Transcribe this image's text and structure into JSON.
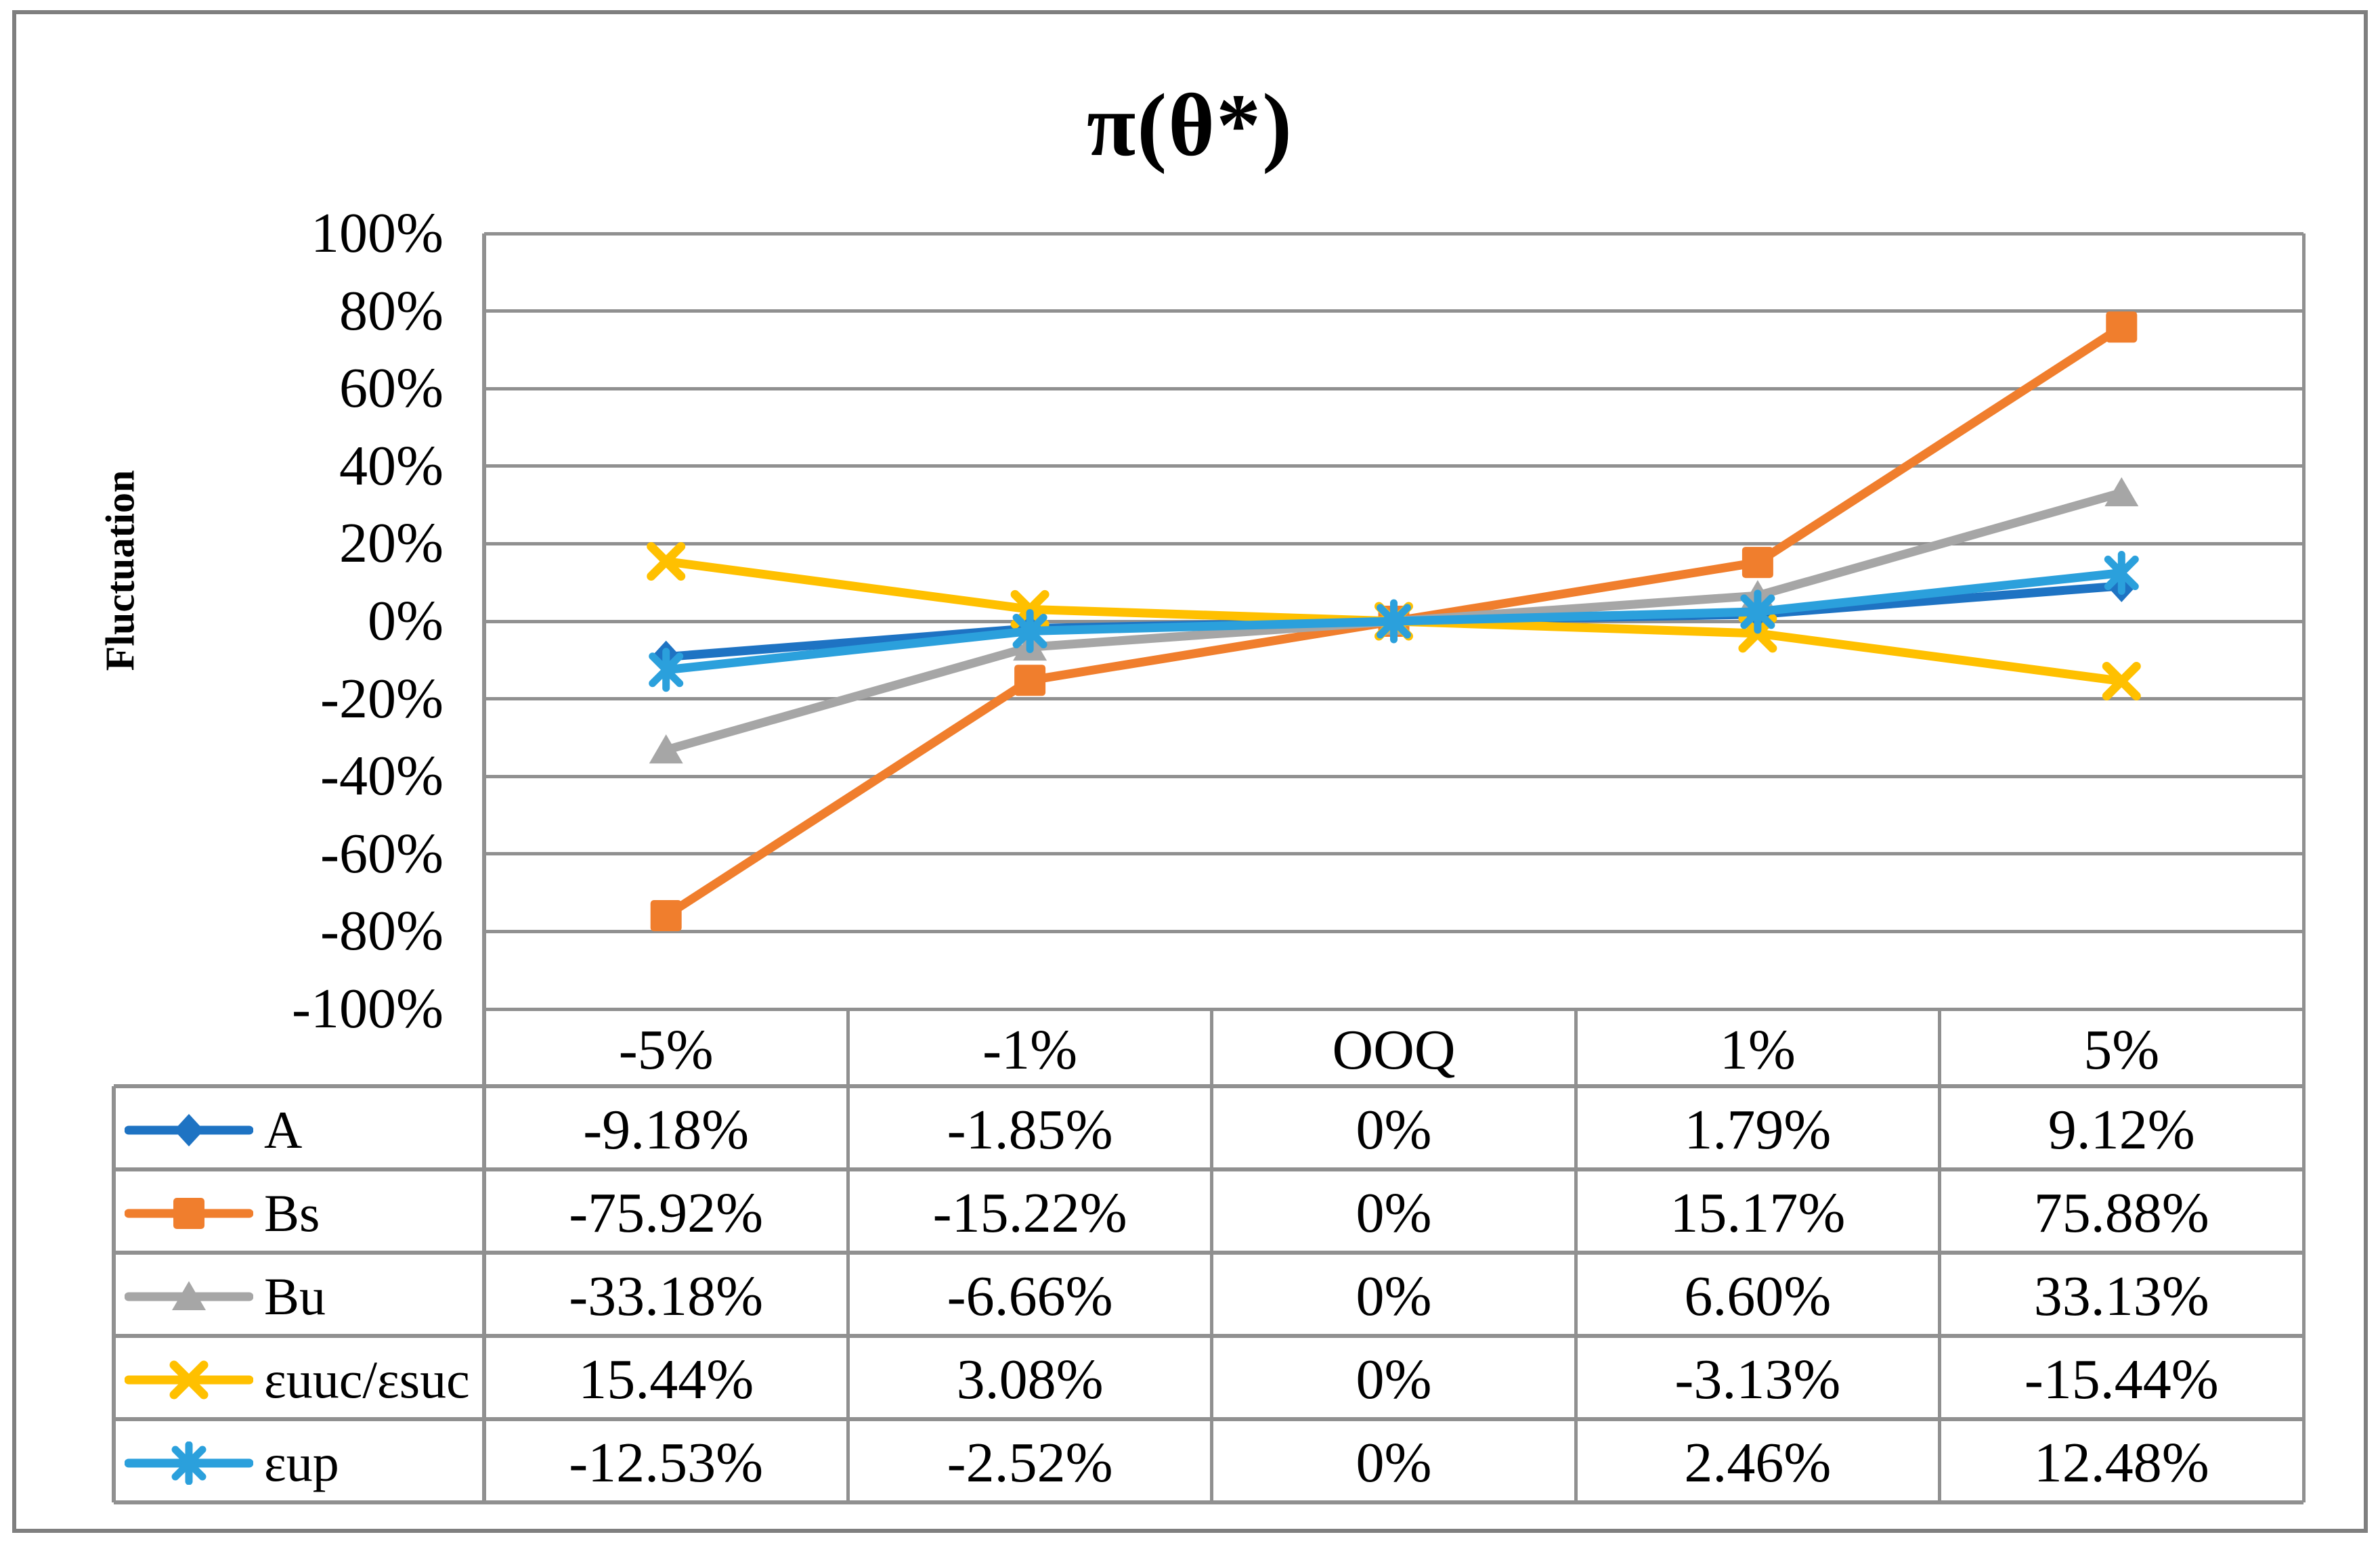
{
  "chart_data": {
    "type": "line",
    "title": "π(θ*)",
    "xlabel": "",
    "ylabel": "Fluctuation",
    "ylim": [
      -100,
      100
    ],
    "ytick_step_percent": 20,
    "grid": true,
    "legend_position": "data-table-left-column",
    "yticks": [
      "100%",
      "80%",
      "60%",
      "40%",
      "20%",
      "0%",
      "-20%",
      "-40%",
      "-60%",
      "-80%",
      "-100%"
    ],
    "categories": [
      "-5%",
      "-1%",
      "OOQ",
      "1%",
      "5%"
    ],
    "series": [
      {
        "name": "A",
        "marker": "diamond",
        "color": "#1E73C3",
        "values": [
          -9.18,
          -1.85,
          0,
          1.79,
          9.12
        ],
        "labels": [
          "-9.18%",
          "-1.85%",
          "0%",
          "1.79%",
          "9.12%"
        ]
      },
      {
        "name": "Bs",
        "marker": "square",
        "color": "#F07E2D",
        "values": [
          -75.92,
          -15.22,
          0,
          15.17,
          75.88
        ],
        "labels": [
          "-75.92%",
          "-15.22%",
          "0%",
          "15.17%",
          "75.88%"
        ]
      },
      {
        "name": "Bu",
        "marker": "triangle",
        "color": "#A6A6A6",
        "values": [
          -33.18,
          -6.66,
          0,
          6.6,
          33.13
        ],
        "labels": [
          "-33.18%",
          "-6.66%",
          "0%",
          "6.60%",
          "33.13%"
        ]
      },
      {
        "name": "εuuc/εsuc",
        "marker": "x",
        "color": "#FFC000",
        "values": [
          15.44,
          3.08,
          0,
          -3.13,
          -15.44
        ],
        "labels": [
          "15.44%",
          "3.08%",
          "0%",
          "-3.13%",
          "-15.44%"
        ]
      },
      {
        "name": "εup",
        "marker": "asterisk",
        "color": "#2BA0DC",
        "values": [
          -12.53,
          -2.52,
          0,
          2.46,
          12.48
        ],
        "labels": [
          "-12.53%",
          "-2.52%",
          "0%",
          "2.46%",
          "12.48%"
        ]
      }
    ],
    "colors": {
      "background": "#FFFFFF",
      "gridline": "#909090",
      "table_border": "#909090",
      "outer_border": "#7F7F7F",
      "text": "#000000"
    }
  }
}
